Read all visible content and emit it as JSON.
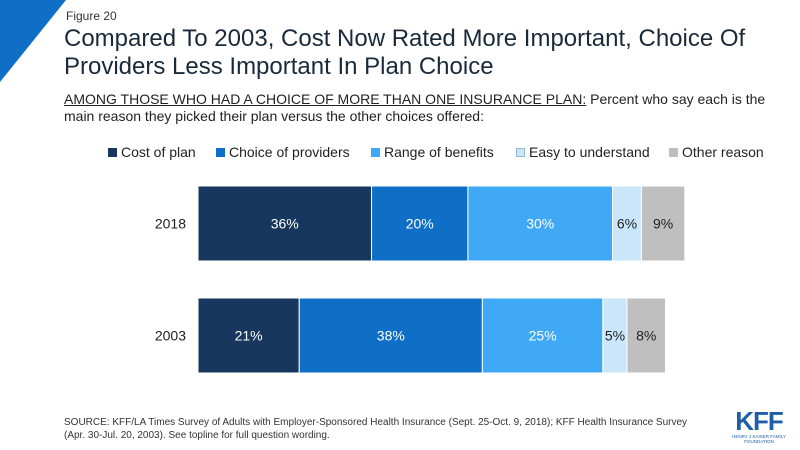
{
  "figure_label": "Figure 20",
  "title": "Compared To 2003, Cost Now Rated More Important, Choice Of Providers Less Important In Plan Choice",
  "subtitle": {
    "lead": "AMONG THOSE WHO HAD A CHOICE OF MORE THAN ONE INSURANCE PLAN:",
    "rest": " Percent who say each is the main reason they picked their plan versus the other choices offered:"
  },
  "chart_data": {
    "type": "bar",
    "orientation": "horizontal",
    "stacked": true,
    "categories": [
      "2018",
      "2003"
    ],
    "series": [
      {
        "name": "Cost of plan",
        "values": [
          36,
          21
        ],
        "labels": [
          "36%",
          "21%"
        ],
        "color": "#17375e"
      },
      {
        "name": "Choice of providers",
        "values": [
          20,
          38
        ],
        "labels": [
          "20%",
          "38%"
        ],
        "color": "#0f6fc6"
      },
      {
        "name": "Range of benefits",
        "values": [
          30,
          25
        ],
        "labels": [
          "30%",
          "25%"
        ],
        "color": "#3fa9f5"
      },
      {
        "name": "Easy to understand",
        "values": [
          6,
          5
        ],
        "labels": [
          "6%",
          "5%"
        ],
        "color": "#c9e6fb"
      },
      {
        "name": "Other reason",
        "values": [
          9,
          8
        ],
        "labels": [
          "9%",
          "8%"
        ],
        "color": "#bfbfbf"
      }
    ],
    "legend_position": "top",
    "grid": false
  },
  "source": "SOURCE: KFF/LA Times Survey of Adults with Employer-Sponsored Health Insurance (Sept. 25-Oct. 9, 2018); KFF Health Insurance Survey (Apr. 30-Jul. 20, 2003). See topline for full question wording.",
  "logo": {
    "mark": "KFF",
    "sub": "HENRY J KAISER FAMILY FOUNDATION"
  }
}
